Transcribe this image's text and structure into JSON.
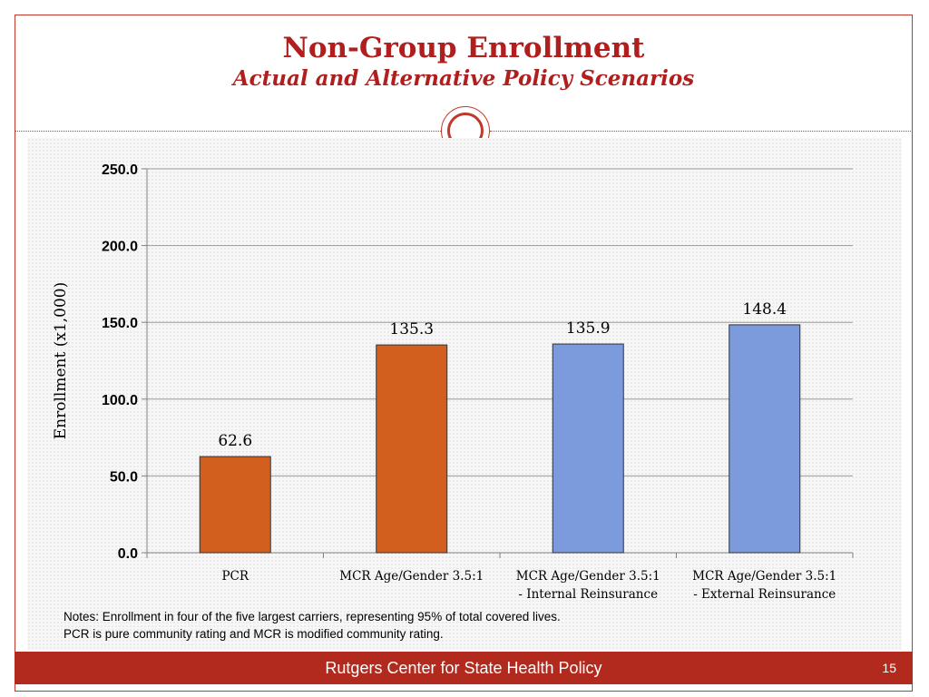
{
  "slide": {
    "title": "Non-Group Enrollment",
    "subtitle": "Actual and Alternative Policy Scenarios",
    "notes_line1": "Notes: Enrollment in four of the five largest carriers, representing 95% of total covered lives.",
    "notes_line2": "PCR is pure community rating and MCR is modified community rating.",
    "footer": "Rutgers Center for State Health Policy",
    "page_number": "15"
  },
  "chart_data": {
    "type": "bar",
    "categories": [
      [
        "PCR"
      ],
      [
        "MCR Age/Gender 3.5:1"
      ],
      [
        "MCR Age/Gender 3.5:1",
        "- Internal Reinsurance"
      ],
      [
        "MCR Age/Gender 3.5:1",
        "- External  Reinsurance"
      ]
    ],
    "values": [
      62.6,
      135.3,
      135.9,
      148.4
    ],
    "value_labels": [
      "62.6",
      "135.3",
      "135.9",
      "148.4"
    ],
    "colors": [
      "#d35f1e",
      "#d35f1e",
      "#7b9bdc",
      "#7b9bdc"
    ],
    "ylabel": "Enrollment (x1,000)",
    "xlabel": "",
    "ylim": [
      0,
      250
    ],
    "yticks": [
      "0.0",
      "50.0",
      "100.0",
      "150.0",
      "200.0",
      "250.0"
    ],
    "grid": true
  }
}
